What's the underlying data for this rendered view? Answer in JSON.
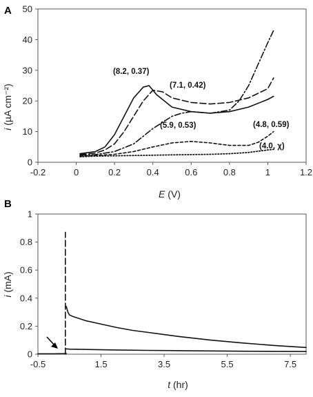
{
  "chart_data": [
    {
      "panel": "A",
      "type": "line",
      "xlabel": {
        "sym": "E",
        "unit": "(V)"
      },
      "ylabel": {
        "sym": "i",
        "unit": "(µA cm⁻²)"
      },
      "xlim": [
        -0.2,
        1.2
      ],
      "ylim": [
        0,
        50
      ],
      "xticks": [
        -0.2,
        0,
        0.2,
        0.4,
        0.6,
        0.8,
        1,
        1.2
      ],
      "xtick_labels": [
        "-0.2",
        "0",
        "0.2",
        "0.4",
        "0.6",
        "0.8",
        "1",
        "1.2"
      ],
      "yticks": [
        0,
        10,
        20,
        30,
        40,
        50
      ],
      "ytick_labels": [
        "0",
        "10",
        "20",
        "30",
        "40",
        "50"
      ],
      "grid": false,
      "annotations": [
        "(8.2, 0.37)",
        "(7.1, 0.42)",
        "(5.9, 0.53)",
        "(4.8, 0.59)",
        "(4.0, χ)"
      ],
      "series": [
        {
          "dash": "solid",
          "color": "#111111",
          "x": [
            0.02,
            0.1,
            0.15,
            0.2,
            0.25,
            0.3,
            0.35,
            0.38,
            0.42,
            0.5,
            0.6,
            0.7,
            0.8,
            0.9,
            1.0,
            1.03
          ],
          "y": [
            2.8,
            3.5,
            5,
            9,
            15,
            21,
            24.5,
            25,
            22,
            18,
            16.5,
            16,
            16.5,
            18,
            20.5,
            21.5
          ]
        },
        {
          "dash": "longdash",
          "color": "#111111",
          "x": [
            0.02,
            0.1,
            0.15,
            0.2,
            0.25,
            0.3,
            0.35,
            0.4,
            0.45,
            0.5,
            0.6,
            0.7,
            0.8,
            0.9,
            1.0,
            1.03
          ],
          "y": [
            2.5,
            3,
            4,
            6,
            10,
            15,
            20,
            23.5,
            23,
            21,
            19.5,
            19,
            19.5,
            21,
            24,
            27.5
          ]
        },
        {
          "dash": "dashdot",
          "color": "#111111",
          "x": [
            0.02,
            0.1,
            0.2,
            0.3,
            0.4,
            0.5,
            0.55,
            0.6,
            0.7,
            0.8,
            0.85,
            0.9,
            0.95,
            1.0,
            1.03
          ],
          "y": [
            2.3,
            2.5,
            3.5,
            6,
            11,
            15,
            16,
            16.5,
            16,
            17,
            20,
            25,
            32,
            39,
            43
          ]
        },
        {
          "dash": "shortdash",
          "color": "#111111",
          "x": [
            0.02,
            0.1,
            0.2,
            0.3,
            0.4,
            0.5,
            0.6,
            0.7,
            0.8,
            0.9,
            0.95,
            1.0,
            1.03
          ],
          "y": [
            2,
            2.2,
            2.6,
            3.5,
            5,
            6.3,
            6.8,
            6.3,
            5.5,
            5.5,
            6.5,
            8.5,
            10
          ]
        },
        {
          "dash": "dot",
          "color": "#111111",
          "x": [
            0.02,
            0.1,
            0.2,
            0.3,
            0.4,
            0.5,
            0.6,
            0.7,
            0.8,
            0.9,
            0.95,
            1.0,
            1.03
          ],
          "y": [
            1.8,
            2,
            2.1,
            2.2,
            2.3,
            2.4,
            2.5,
            2.6,
            2.8,
            3.2,
            3.6,
            4.0,
            4.2
          ]
        }
      ]
    },
    {
      "panel": "B",
      "type": "line",
      "xlabel": {
        "sym": "t",
        "unit": "(hr)"
      },
      "ylabel": {
        "sym": "i",
        "unit": "(mA)"
      },
      "xlim": [
        -0.5,
        8.0
      ],
      "ylim": [
        0,
        1.0
      ],
      "xticks": [
        -0.5,
        1.5,
        3.5,
        5.5,
        7.5
      ],
      "xtick_labels": [
        "-0.5",
        "1.5",
        "3.5",
        "5.5",
        "7.5"
      ],
      "yticks": [
        0,
        0.2,
        0.4,
        0.6,
        0.8,
        1.0
      ],
      "ytick_labels": [
        "0",
        "0.2",
        "0.4",
        "0.6",
        "0.8",
        "1"
      ],
      "grid": false,
      "series": [
        {
          "dash": "solid",
          "color": "#111111",
          "x": [
            0.4,
            0.45,
            0.5,
            0.6,
            0.8,
            1.0,
            1.5,
            2.0,
            2.5,
            3.0,
            3.5,
            4.0,
            5.0,
            6.0,
            7.0,
            8.0
          ],
          "y": [
            0.34,
            0.3,
            0.28,
            0.27,
            0.255,
            0.24,
            0.215,
            0.19,
            0.17,
            0.155,
            0.14,
            0.125,
            0.1,
            0.08,
            0.062,
            0.048
          ]
        },
        {
          "dash": "solid",
          "color": "#111111",
          "x": [
            0.4,
            0.5,
            1.0,
            2.0,
            3.0,
            4.0,
            5.0,
            6.0,
            7.0,
            8.0
          ],
          "y": [
            0.038,
            0.036,
            0.034,
            0.03,
            0.027,
            0.025,
            0.023,
            0.021,
            0.02,
            0.019
          ]
        },
        {
          "dash": "solid",
          "color": "#111111",
          "x": [
            -0.5,
            0.0,
            0.3,
            0.4
          ],
          "y": [
            0.003,
            0.003,
            0.004,
            0.005
          ]
        },
        {
          "dash": "longdash",
          "color": "#111111",
          "x": [
            0.37,
            0.37
          ],
          "y": [
            0.0,
            0.87
          ]
        }
      ]
    }
  ]
}
